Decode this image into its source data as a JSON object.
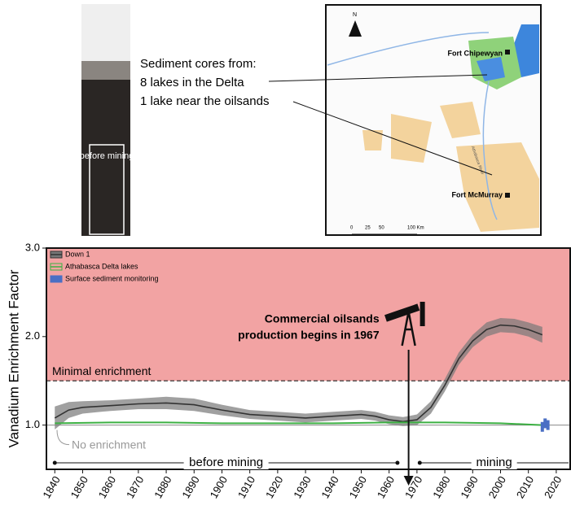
{
  "panels": {
    "core_label": "before mining",
    "core_text": [
      "Sediment cores from:",
      "8 lakes in the Delta",
      "1 lake near the oilsands"
    ],
    "map_labels": {
      "north": "N",
      "town1": "Fort Chipewyan",
      "town2": "Fort McMurray",
      "river": "Athabasca River",
      "scale": [
        "0",
        "25",
        "50",
        "100 Km"
      ]
    }
  },
  "chart_data": {
    "type": "line",
    "y_label": "Vanadium Enrichment Factor",
    "xlim": [
      1837,
      2025
    ],
    "xticks": [
      1840,
      1850,
      1860,
      1870,
      1880,
      1890,
      1900,
      1910,
      1920,
      1930,
      1940,
      1950,
      1960,
      1970,
      1980,
      1990,
      2000,
      2010,
      2020
    ],
    "ylim": [
      0.5,
      3.0
    ],
    "yticks": [
      {
        "value": 1,
        "label": "1.0"
      },
      {
        "value": 2,
        "label": "2.0"
      },
      {
        "value": 3,
        "label": "3.0"
      }
    ],
    "shaded_region": {
      "from": 1.5,
      "to": 3.0,
      "color": "#f2a3a3"
    },
    "threshold": {
      "value": 1.5,
      "label": "Minimal enrichment"
    },
    "baseline": {
      "value": 1,
      "label": "No enrichment"
    },
    "event": {
      "x": 1967,
      "label": [
        "Commercial oilsands",
        "production begins in 1967"
      ]
    },
    "periods": [
      {
        "label": "before mining",
        "from": 1840,
        "to": 1963
      },
      {
        "label": "mining",
        "from": 1971,
        "to": 2025
      }
    ],
    "legend": "top-left",
    "series": [
      {
        "name": "Down 1",
        "color": "#333333",
        "x": [
          1840,
          1845,
          1850,
          1860,
          1870,
          1880,
          1890,
          1900,
          1910,
          1920,
          1930,
          1940,
          1950,
          1955,
          1960,
          1965,
          1970,
          1975,
          1980,
          1985,
          1990,
          1995,
          2000,
          2005,
          2010,
          2015
        ],
        "values": [
          1.08,
          1.17,
          1.2,
          1.22,
          1.24,
          1.25,
          1.23,
          1.17,
          1.12,
          1.1,
          1.08,
          1.1,
          1.12,
          1.1,
          1.06,
          1.04,
          1.06,
          1.2,
          1.45,
          1.75,
          1.95,
          2.08,
          2.13,
          2.12,
          2.08,
          2.02
        ],
        "lower": [
          0.95,
          1.08,
          1.13,
          1.16,
          1.18,
          1.18,
          1.16,
          1.11,
          1.07,
          1.05,
          1.03,
          1.05,
          1.07,
          1.05,
          1.01,
          0.99,
          1.0,
          1.13,
          1.38,
          1.68,
          1.88,
          2.0,
          2.05,
          2.04,
          2.0,
          1.93
        ],
        "upper": [
          1.21,
          1.26,
          1.27,
          1.28,
          1.3,
          1.32,
          1.3,
          1.23,
          1.17,
          1.15,
          1.13,
          1.15,
          1.17,
          1.15,
          1.11,
          1.09,
          1.12,
          1.27,
          1.52,
          1.82,
          2.02,
          2.16,
          2.21,
          2.2,
          2.16,
          2.11
        ]
      },
      {
        "name": "Athabasca Delta lakes",
        "color": "#3cb043",
        "x": [
          1840,
          1860,
          1880,
          1900,
          1920,
          1940,
          1960,
          1980,
          2000,
          2015
        ],
        "values": [
          1.02,
          1.03,
          1.03,
          1.02,
          1.02,
          1.02,
          1.03,
          1.03,
          1.02,
          1.0
        ]
      },
      {
        "name": "Surface sediment monitoring",
        "color": "#4a6fc4",
        "x": [
          2015,
          2016,
          2017
        ],
        "values": [
          0.98,
          1.02,
          1.0
        ]
      }
    ]
  }
}
